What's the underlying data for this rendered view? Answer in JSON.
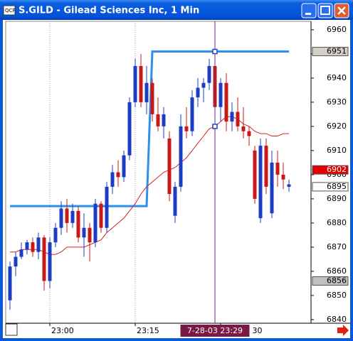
{
  "window": {
    "title": "S.GILD - Gilead Sciences Inc, 1 Min"
  },
  "chart_data": {
    "type": "candlestick",
    "categories": [
      null,
      null,
      null,
      null,
      null,
      null,
      null,
      "23:00",
      null,
      null,
      null,
      null,
      null,
      null,
      null,
      null,
      null,
      null,
      null,
      null,
      null,
      null,
      "23:15",
      null,
      null,
      null,
      null,
      null,
      null,
      null,
      null,
      null,
      null,
      null,
      null,
      null,
      null,
      "30",
      null,
      null,
      null,
      null,
      null,
      null,
      null,
      null,
      null,
      null,
      null,
      null
    ],
    "open": [
      6848,
      6862,
      6866,
      6869,
      6872,
      6868,
      6874,
      6856,
      6872,
      6878,
      6886,
      6880,
      6885,
      6874,
      6878,
      6872,
      6888,
      6878,
      6895,
      6901,
      6899,
      6908,
      6930,
      6945,
      6930,
      6938,
      6925,
      6920,
      6915,
      6883,
      6895,
      6920,
      6918,
      6932,
      6936,
      6938,
      6945,
      6928,
      6938,
      6922,
      6926,
      6920,
      6918,
      6910,
      6882,
      6912,
      6884,
      6905,
      6900,
      6895
    ],
    "high": [
      6864,
      6868,
      6872,
      6873,
      6874,
      6876,
      6875,
      6874,
      6880,
      6889,
      6890,
      6888,
      6887,
      6884,
      6880,
      6890,
      6889,
      6897,
      6904,
      6906,
      6910,
      6932,
      6948,
      6950,
      6945,
      6940,
      6932,
      6928,
      6918,
      6897,
      6925,
      6928,
      6935,
      6940,
      6940,
      6948,
      6950,
      6940,
      6942,
      6930,
      6932,
      6928,
      6920,
      6912,
      6915,
      6915,
      6910,
      6910,
      6905,
      6898
    ],
    "low": [
      6844,
      6858,
      6865,
      6867,
      6866,
      6865,
      6852,
      6853,
      6870,
      6875,
      6876,
      6878,
      6872,
      6866,
      6864,
      6870,
      6876,
      6876,
      6892,
      6895,
      6897,
      6906,
      6928,
      6928,
      6925,
      6922,
      6918,
      6915,
      6889,
      6880,
      6893,
      6915,
      6916,
      6928,
      6930,
      6935,
      6925,
      6922,
      6918,
      6918,
      6918,
      6915,
      6912,
      6888,
      6880,
      6892,
      6882,
      6895,
      6894,
      6893
    ],
    "close": [
      6862,
      6866,
      6869,
      6872,
      6868,
      6874,
      6856,
      6872,
      6878,
      6886,
      6880,
      6885,
      6874,
      6878,
      6872,
      6888,
      6878,
      6895,
      6901,
      6899,
      6908,
      6930,
      6945,
      6930,
      6938,
      6925,
      6920,
      6925,
      6892,
      6895,
      6920,
      6918,
      6932,
      6936,
      6938,
      6945,
      6928,
      6938,
      6922,
      6926,
      6920,
      6918,
      6916,
      6890,
      6912,
      6895,
      6905,
      6900,
      6898,
      6896
    ],
    "up_color": "#1c3cc4",
    "down_color": "#c81818",
    "overlays": [
      {
        "color": "#2d8fef",
        "width": 3,
        "values": [
          6887,
          6887,
          6887,
          6887,
          6887,
          6887,
          6887,
          6887,
          6887,
          6887,
          6887,
          6887,
          6887,
          6887,
          6887,
          6887,
          6887,
          6887,
          6887,
          6887,
          6887,
          6887,
          6887,
          6887,
          6887,
          6951,
          6951,
          6951,
          6951,
          6951,
          6951,
          6951,
          6951,
          6951,
          6951,
          6951,
          6951,
          6951,
          6951,
          6951,
          6951,
          6951,
          6951,
          6951,
          6951,
          6951,
          6951,
          6951,
          6951,
          6951
        ]
      },
      {
        "color": "#d82020",
        "width": 1,
        "values": [
          6868,
          6868,
          6869,
          6869,
          6869,
          6869,
          6868,
          6867,
          6867,
          6868,
          6870,
          6870,
          6870,
          6870,
          6871,
          6872,
          6873,
          6876,
          6878,
          6880,
          6882,
          6885,
          6888,
          6892,
          6895,
          6897,
          6899,
          6901,
          6902,
          6903,
          6905,
          6907,
          6910,
          6913,
          6916,
          6919,
          6920,
          6922,
          6924,
          6924,
          6923,
          6921,
          6920,
          6918,
          6917,
          6917,
          6916,
          6916,
          6917,
          6917
        ]
      }
    ],
    "ylim": [
      6838.5,
      6963.5
    ],
    "yticks": [
      6840,
      6850,
      6860,
      6870,
      6880,
      6890,
      6900,
      6910,
      6920,
      6930,
      6940,
      6950,
      6960
    ],
    "grid": "x",
    "price_tags": [
      {
        "value": 6951,
        "color": "#d4d0c8",
        "text_color": "#000000"
      },
      {
        "value": 6902,
        "color": "#e00000",
        "text_color": "#ffffff"
      },
      {
        "value": 6895,
        "color": "#ffffff",
        "text_color": "#000000"
      },
      {
        "value": 6856,
        "color": "#c0c0c0",
        "text_color": "#000000"
      }
    ],
    "crosshair": {
      "index": 36,
      "label": "7-28-03 23:29"
    }
  }
}
